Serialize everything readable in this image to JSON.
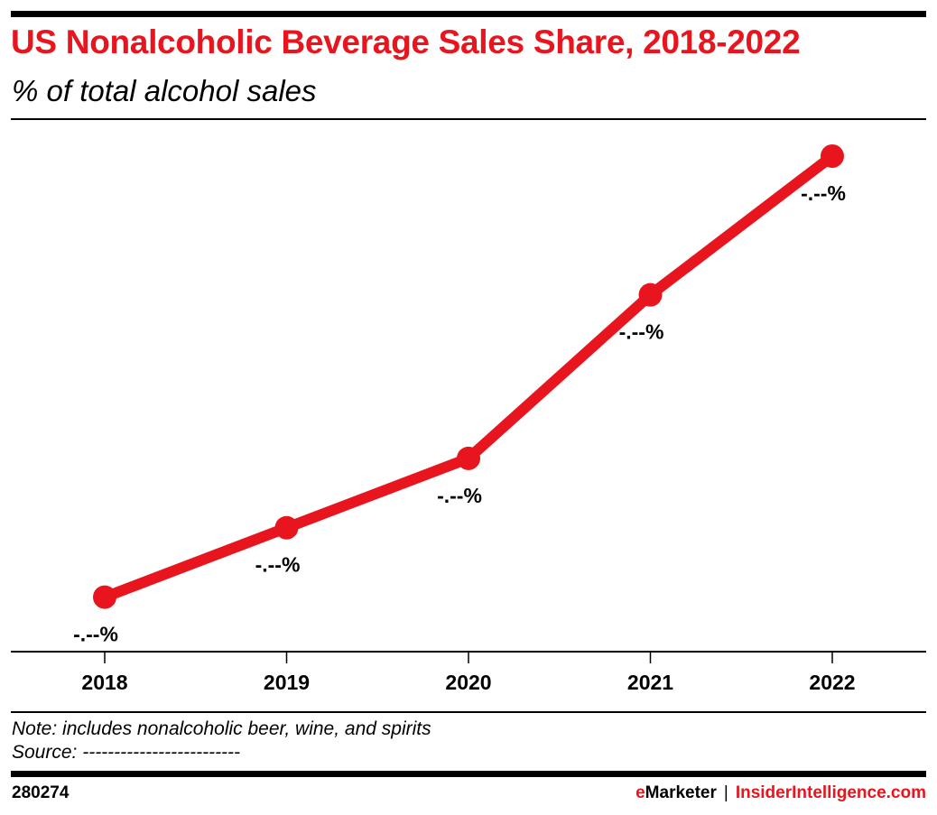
{
  "chart_data": {
    "type": "line",
    "title": "US Nonalcoholic Beverage Sales Share, 2018-2022",
    "subtitle": "% of total alcohol sales",
    "categories": [
      "2018",
      "2019",
      "2020",
      "2021",
      "2022"
    ],
    "series": [
      {
        "values": [
          0.11,
          0.25,
          0.39,
          0.72,
          1.0
        ],
        "data_labels": [
          "-.--%",
          "-.--%",
          "-.--%",
          "-.--%",
          "-.--%"
        ]
      }
    ],
    "value_note": "relative levels; printed data labels are masked",
    "ylim": [
      0,
      1.06
    ],
    "grid": false,
    "legend": "none",
    "colors": {
      "line": "#e8141e",
      "accent": "#e8141e",
      "text": "#000000"
    }
  },
  "footer": {
    "note": "Note: includes nonalcoholic beer, wine, and spirits",
    "source": "Source: -------------------------",
    "chart_id": "280274",
    "brand_1": "eMarketer",
    "separator": "|",
    "brand_2": "InsiderIntelligence.com"
  }
}
